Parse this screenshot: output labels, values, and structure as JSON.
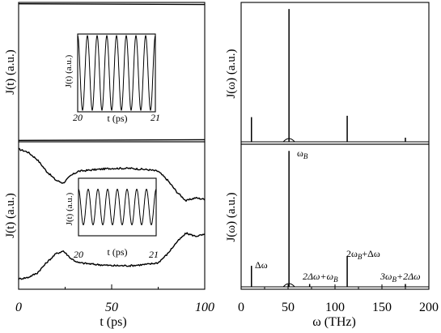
{
  "chart_data": [
    {
      "panel": "top-left",
      "type": "line",
      "ylabel": "J(t) (a.u.)",
      "xlim": [
        0,
        100
      ],
      "series": [
        {
          "values_x": [
            0,
            100
          ],
          "values_y": [
            0.99,
            0.985
          ]
        },
        {
          "values_x": [
            0,
            100
          ],
          "values_y": [
            0.01,
            0.015
          ]
        }
      ],
      "inset": {
        "xlabel": "t (ps)",
        "ylabel": "J(t) (a.u.)",
        "xlim": [
          20,
          21
        ],
        "x_tick_labels": [
          "20",
          "21"
        ],
        "oscillation_periods": 8
      }
    },
    {
      "panel": "bottom-left",
      "type": "line",
      "xlabel": "t (ps)",
      "ylabel": "J(t) (a.u.)",
      "xlim": [
        0,
        100
      ],
      "x_ticks": [
        0,
        50,
        100
      ],
      "x_tick_labels": [
        "0",
        "50",
        "100"
      ],
      "series": [
        {
          "x": [
            0,
            5,
            10,
            15,
            20,
            24,
            28,
            32,
            40,
            50,
            60,
            70,
            75,
            80,
            85,
            90,
            95,
            100
          ],
          "y": [
            0.95,
            0.93,
            0.88,
            0.8,
            0.74,
            0.72,
            0.77,
            0.8,
            0.81,
            0.82,
            0.82,
            0.81,
            0.8,
            0.74,
            0.66,
            0.6,
            0.62,
            0.61
          ]
        },
        {
          "x": [
            0,
            5,
            10,
            15,
            20,
            24,
            28,
            32,
            40,
            50,
            60,
            70,
            75,
            80,
            85,
            90,
            95,
            100
          ],
          "y": [
            0.07,
            0.08,
            0.11,
            0.18,
            0.24,
            0.26,
            0.21,
            0.18,
            0.17,
            0.16,
            0.16,
            0.17,
            0.18,
            0.24,
            0.32,
            0.38,
            0.36,
            0.37
          ]
        }
      ],
      "inset": {
        "xlabel": "t (ps)",
        "ylabel": "J(t) (a.u.)",
        "xlim": [
          20,
          21
        ],
        "x_tick_labels": [
          "20",
          "21"
        ],
        "oscillation_periods": 8
      }
    },
    {
      "panel": "top-right",
      "type": "line",
      "ylabel": "J(ω) (a.u.)",
      "xlim": [
        0,
        200
      ],
      "peaks": [
        {
          "x": 11,
          "height": 0.18
        },
        {
          "x": 51,
          "height": 0.97
        },
        {
          "x": 113,
          "height": 0.19
        },
        {
          "x": 175,
          "height": 0.03
        }
      ]
    },
    {
      "panel": "bottom-right",
      "type": "line",
      "xlabel": "ω (THz)",
      "ylabel": "J(ω) (a.u.)",
      "xlim": [
        0,
        200
      ],
      "x_ticks": [
        0,
        50,
        100,
        150,
        200
      ],
      "x_tick_labels": [
        "0",
        "50",
        "100",
        "150",
        "200"
      ],
      "peaks": [
        {
          "x": 11,
          "height": 0.15
        },
        {
          "x": 51,
          "height": 0.97
        },
        {
          "x": 73,
          "height": 0.02
        },
        {
          "x": 113,
          "height": 0.22
        },
        {
          "x": 175,
          "height": 0.02
        }
      ],
      "annotations": {
        "delta": "Δω",
        "omega_b": "ω",
        "omega_b_sub": "B",
        "two_delta_omega_b": "2Δω+ω",
        "two_delta_omega_b_sub": "B",
        "two_omega_b_delta_a": "2ω",
        "two_omega_b_delta_sub": "B",
        "two_omega_b_delta_b": "+Δω",
        "three_omega_b_a": "3ω",
        "three_omega_b_sub": "B",
        "three_omega_b_b": "+2Δω"
      }
    }
  ]
}
